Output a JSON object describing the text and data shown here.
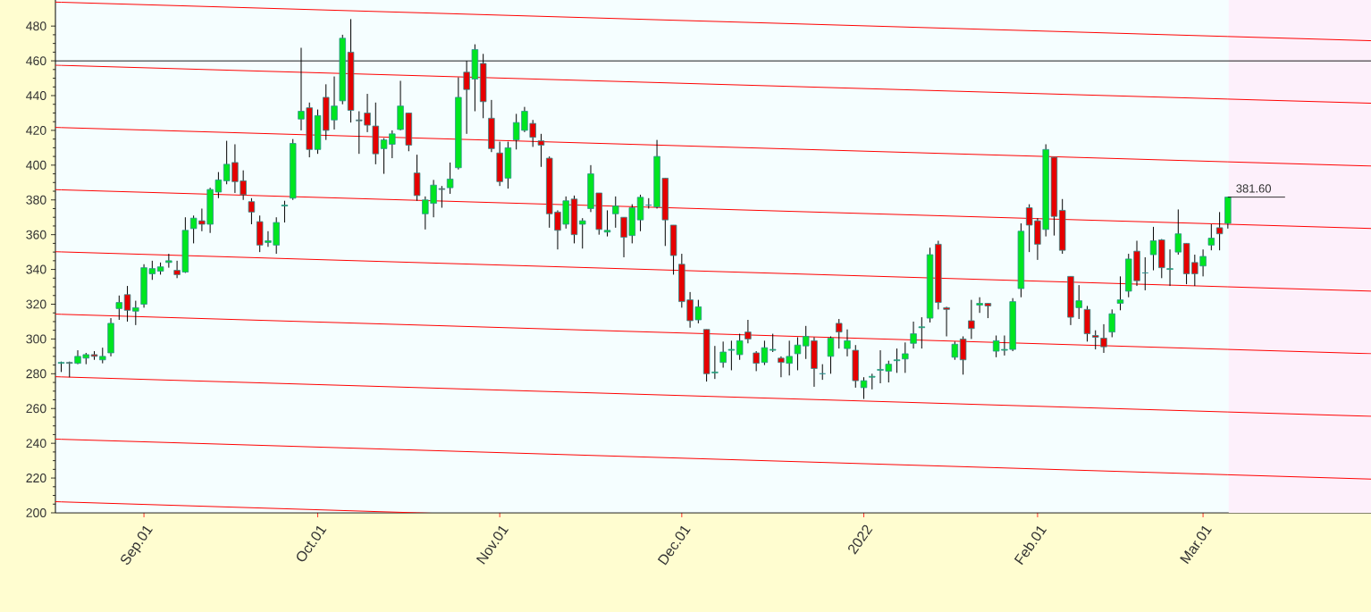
{
  "chart_data": {
    "type": "candlestick",
    "categories": [
      null,
      null,
      null,
      null,
      null,
      null,
      null,
      null,
      null,
      null,
      "Sep.01",
      null,
      null,
      null,
      null,
      null,
      null,
      null,
      null,
      null,
      null,
      null,
      null,
      null,
      null,
      null,
      null,
      null,
      null,
      null,
      null,
      "Oct.01",
      null,
      null,
      null,
      null,
      null,
      null,
      null,
      null,
      null,
      null,
      null,
      null,
      null,
      null,
      null,
      null,
      null,
      null,
      null,
      null,
      null,
      "Nov.01",
      null,
      null,
      null,
      null,
      null,
      null,
      null,
      null,
      null,
      null,
      null,
      null,
      null,
      null,
      null,
      null,
      null,
      null,
      null,
      null,
      null,
      "Dec.01",
      null,
      null,
      null,
      null,
      null,
      null,
      null,
      null,
      null,
      null,
      null,
      null,
      null,
      null,
      null,
      null,
      null,
      null,
      null,
      null,
      null,
      "2022",
      null,
      null,
      null,
      null,
      null,
      null,
      null,
      null,
      null,
      null,
      null,
      null,
      null,
      null,
      null,
      null,
      null,
      null,
      null,
      null,
      "Feb.01",
      null,
      null,
      null,
      null,
      null,
      null,
      null,
      null,
      null,
      null,
      null,
      null,
      null,
      null,
      null,
      null,
      null,
      null,
      null,
      "Mar.01",
      null,
      null,
      null
    ],
    "ohlc": [
      [
        286,
        287,
        281,
        286.5
      ],
      [
        286.5,
        287,
        278,
        286
      ],
      [
        286,
        293.5,
        285.5,
        290
      ],
      [
        289,
        292,
        285.5,
        291
      ],
      [
        291,
        293,
        288,
        290
      ],
      [
        288,
        295,
        286,
        290
      ],
      [
        292,
        312,
        290,
        309
      ],
      [
        317.5,
        325,
        311,
        321
      ],
      [
        325.5,
        330.5,
        310,
        316.5
      ],
      [
        316,
        322,
        308,
        318
      ],
      [
        320,
        343,
        318,
        341
      ],
      [
        337.5,
        345,
        334,
        340.5
      ],
      [
        339,
        344,
        337,
        341.5
      ],
      [
        344,
        349,
        341,
        345
      ],
      [
        339.5,
        345,
        335,
        337
      ],
      [
        338.5,
        370,
        338,
        362.5
      ],
      [
        363.5,
        371,
        355,
        369.5
      ],
      [
        368,
        375,
        362,
        366
      ],
      [
        366,
        387,
        361,
        386
      ],
      [
        384.5,
        396,
        381,
        391.5
      ],
      [
        391,
        414,
        389,
        400.5
      ],
      [
        401.5,
        412,
        384,
        390.5
      ],
      [
        391,
        397,
        380,
        383
      ],
      [
        379,
        381,
        366,
        373
      ],
      [
        367.5,
        371,
        350,
        354
      ],
      [
        355.5,
        362,
        353,
        356.5
      ],
      [
        354,
        370,
        349,
        367
      ],
      [
        376.5,
        379.5,
        367,
        377
      ],
      [
        381,
        415,
        380,
        412.5
      ],
      [
        426.5,
        467.5,
        420,
        431
      ],
      [
        433,
        436,
        404.5,
        409
      ],
      [
        409,
        432,
        406.5,
        428.5
      ],
      [
        439,
        446.5,
        414.5,
        420
      ],
      [
        426,
        451,
        420.5,
        434
      ],
      [
        437,
        475,
        435,
        473
      ],
      [
        465,
        484,
        424.5,
        431.5
      ],
      [
        426,
        431,
        406.5,
        425.5
      ],
      [
        430,
        441,
        419,
        423
      ],
      [
        422.5,
        436,
        400.5,
        406.5
      ],
      [
        409.5,
        415.5,
        395,
        414.5
      ],
      [
        412,
        420,
        404,
        418
      ],
      [
        420.5,
        448.5,
        420,
        434
      ],
      [
        430,
        430,
        408,
        411.5
      ],
      [
        395.5,
        406,
        379.5,
        382.5
      ],
      [
        372,
        382,
        363,
        380
      ],
      [
        378,
        391.5,
        370,
        388.5
      ],
      [
        386.5,
        388,
        375.5,
        386
      ],
      [
        387,
        401.5,
        383.5,
        392
      ],
      [
        398.5,
        450.5,
        397.5,
        439
      ],
      [
        453.5,
        460,
        418,
        443.5
      ],
      [
        449.5,
        469.5,
        431,
        466.5
      ],
      [
        458.5,
        464,
        427,
        436.5
      ],
      [
        427,
        437.5,
        407.5,
        409.5
      ],
      [
        407,
        413.5,
        388,
        390.5
      ],
      [
        392.5,
        413.5,
        386.5,
        410
      ],
      [
        414.5,
        429.5,
        409,
        424.5
      ],
      [
        420,
        433.5,
        419,
        431
      ],
      [
        424,
        426,
        410.5,
        416
      ],
      [
        414,
        418,
        399,
        411.5
      ],
      [
        404,
        405,
        364,
        372
      ],
      [
        373,
        374,
        351.5,
        362.5
      ],
      [
        366,
        382,
        363.5,
        379.5
      ],
      [
        380.5,
        382.5,
        355,
        360
      ],
      [
        366,
        369.5,
        352,
        368
      ],
      [
        375,
        400,
        373,
        395
      ],
      [
        384,
        384,
        360,
        363
      ],
      [
        361.5,
        374,
        359,
        362.5
      ],
      [
        372,
        382,
        364,
        376.5
      ],
      [
        370,
        370,
        347,
        358.5
      ],
      [
        359.5,
        377.5,
        355,
        375.5
      ],
      [
        368.5,
        383,
        362,
        381.5
      ],
      [
        377,
        381,
        375,
        377
      ],
      [
        376,
        414.5,
        375,
        405
      ],
      [
        392.5,
        392.5,
        353.5,
        368.5
      ],
      [
        365.5,
        365.5,
        337,
        348
      ],
      [
        343,
        349,
        318,
        321.5
      ],
      [
        322.5,
        327,
        306.5,
        310.5
      ],
      [
        311,
        322.5,
        309,
        318.5
      ],
      [
        305.5,
        305.5,
        275.5,
        280
      ],
      [
        280.5,
        296,
        277,
        281
      ],
      [
        286.5,
        298.5,
        283.5,
        292.5
      ],
      [
        293.5,
        299,
        282,
        294
      ],
      [
        291,
        303,
        288,
        299
      ],
      [
        304,
        311,
        297.5,
        300
      ],
      [
        292,
        293,
        281.5,
        286
      ],
      [
        286.5,
        299,
        285,
        295
      ],
      [
        293.5,
        303,
        292.5,
        294
      ],
      [
        289,
        290,
        278,
        286.5
      ],
      [
        286,
        299,
        279,
        290
      ],
      [
        291.5,
        301,
        282,
        296.5
      ],
      [
        296,
        307.5,
        288.5,
        301.5
      ],
      [
        299,
        301,
        272.5,
        283
      ],
      [
        280,
        285.5,
        276.5,
        280
      ],
      [
        290,
        301.5,
        280,
        300.5
      ],
      [
        309,
        311.5,
        294.5,
        304
      ],
      [
        294.5,
        305.5,
        290,
        299
      ],
      [
        293.5,
        296.5,
        272,
        276
      ],
      [
        272,
        278,
        265.5,
        276
      ],
      [
        278,
        280,
        271,
        278.5
      ],
      [
        282,
        293.5,
        274.5,
        282.5
      ],
      [
        281.5,
        287.5,
        275,
        285.5
      ],
      [
        287.5,
        294.5,
        280.5,
        288
      ],
      [
        288.5,
        298,
        280.5,
        291.5
      ],
      [
        297.5,
        310,
        294.5,
        303
      ],
      [
        306.5,
        312.5,
        294.5,
        307
      ],
      [
        312,
        352.5,
        309.5,
        348.5
      ],
      [
        354.5,
        356.5,
        317,
        321
      ],
      [
        318,
        318.5,
        301.5,
        317
      ],
      [
        289.5,
        298.5,
        288,
        297
      ],
      [
        300,
        301.5,
        279.5,
        288
      ],
      [
        310.5,
        322.5,
        300,
        306
      ],
      [
        319.5,
        324,
        315,
        320.5
      ],
      [
        320.5,
        320.5,
        312,
        319
      ],
      [
        293,
        302,
        289.5,
        299
      ],
      [
        293.5,
        302,
        290.5,
        294
      ],
      [
        294,
        323.5,
        293,
        321.5
      ],
      [
        329,
        366.5,
        324,
        362
      ],
      [
        375.5,
        377.5,
        350,
        365.5
      ],
      [
        368,
        369.5,
        345.5,
        354.5
      ],
      [
        363,
        412,
        359,
        409
      ],
      [
        404.5,
        404.5,
        359.5,
        370.5
      ],
      [
        374,
        380.5,
        349,
        351
      ],
      [
        336,
        336,
        308,
        312.5
      ],
      [
        318,
        331,
        311.5,
        322
      ],
      [
        317,
        319,
        298.5,
        303
      ],
      [
        302,
        305,
        294,
        301
      ],
      [
        300.5,
        308.5,
        292,
        295.5
      ],
      [
        304,
        317,
        301,
        314.5
      ],
      [
        320.5,
        336,
        316.5,
        322.5
      ],
      [
        327.5,
        349,
        324,
        346
      ],
      [
        350.5,
        356.5,
        330.5,
        333.5
      ],
      [
        338,
        347,
        328,
        338
      ],
      [
        348.5,
        364.5,
        339.5,
        356.5
      ],
      [
        357,
        357.5,
        335,
        341
      ],
      [
        340,
        351.5,
        330.5,
        340.5
      ],
      [
        350,
        374.5,
        348.5,
        360.5
      ],
      [
        355,
        355,
        331.5,
        337.5
      ],
      [
        344,
        348.5,
        330.5,
        337.5
      ],
      [
        342,
        351.5,
        336,
        347.5
      ],
      [
        354,
        366,
        351,
        358
      ],
      [
        364,
        373,
        351,
        360.5
      ],
      [
        366.5,
        381.6,
        363.5,
        381.6
      ]
    ],
    "series": [
      {
        "type": "line",
        "color": "#ff0000",
        "values": [
          493.7,
          null,
          null,
          null,
          null,
          null,
          null,
          null,
          null,
          null,
          null,
          null,
          null,
          null,
          null,
          null,
          null,
          null,
          null,
          null,
          null,
          null,
          null,
          null,
          null,
          null,
          null,
          null,
          null,
          null,
          null,
          null,
          null,
          null,
          null,
          null,
          null,
          null,
          null,
          null,
          null,
          null,
          null,
          null,
          null,
          null,
          null,
          null,
          null,
          null,
          null,
          null,
          null,
          null,
          null,
          null,
          null,
          null,
          null,
          null,
          null,
          null,
          null,
          null,
          null,
          null,
          null,
          null,
          null,
          null,
          null,
          null,
          null,
          null,
          null,
          null,
          null,
          null,
          null,
          null,
          null,
          null,
          null,
          null,
          null,
          null,
          null,
          null,
          null,
          null,
          null,
          null,
          null,
          null,
          null,
          null,
          null,
          null,
          null,
          null,
          null,
          null,
          null,
          null,
          null,
          null,
          null,
          null,
          null,
          null,
          null,
          null,
          null,
          null,
          null,
          null,
          null,
          null,
          null,
          null,
          null,
          null,
          null,
          null,
          null,
          null,
          null,
          null,
          null,
          null,
          null,
          null,
          null,
          null,
          null,
          null,
          null,
          null,
          null,
          null,
          null,
          474.0
        ]
      },
      {
        "type": "line",
        "color": "#ff0000",
        "values": [
          457.4,
          null,
          null,
          null,
          null,
          null,
          null,
          null,
          null,
          null,
          null,
          null,
          null,
          null,
          null,
          null,
          null,
          null,
          null,
          null,
          null,
          null,
          null,
          null,
          null,
          null,
          null,
          null,
          null,
          null,
          null,
          null,
          null,
          null,
          null,
          null,
          null,
          null,
          null,
          null,
          null,
          null,
          null,
          null,
          null,
          null,
          null,
          null,
          null,
          null,
          null,
          null,
          null,
          null,
          null,
          null,
          null,
          null,
          null,
          null,
          null,
          null,
          null,
          null,
          null,
          null,
          null,
          null,
          null,
          null,
          null,
          null,
          null,
          null,
          null,
          null,
          null,
          null,
          null,
          null,
          null,
          null,
          null,
          null,
          null,
          null,
          null,
          null,
          null,
          null,
          null,
          null,
          null,
          null,
          null,
          null,
          null,
          null,
          null,
          null,
          null,
          null,
          null,
          null,
          null,
          null,
          null,
          null,
          null,
          null,
          null,
          null,
          null,
          null,
          null,
          null,
          null,
          null,
          null,
          null,
          null,
          null,
          null,
          null,
          null,
          null,
          null,
          null,
          null,
          null,
          null,
          null,
          null,
          null,
          null,
          null,
          null,
          null,
          null,
          null,
          null,
          438.0
        ]
      },
      {
        "type": "line",
        "color": "#ff0000",
        "values": [
          421.6,
          null,
          null,
          null,
          null,
          null,
          null,
          null,
          null,
          null,
          null,
          null,
          null,
          null,
          null,
          null,
          null,
          null,
          null,
          null,
          null,
          null,
          null,
          null,
          null,
          null,
          null,
          null,
          null,
          null,
          null,
          null,
          null,
          null,
          null,
          null,
          null,
          null,
          null,
          null,
          null,
          null,
          null,
          null,
          null,
          null,
          null,
          null,
          null,
          null,
          null,
          null,
          null,
          null,
          null,
          null,
          null,
          null,
          null,
          null,
          null,
          null,
          null,
          null,
          null,
          null,
          null,
          null,
          null,
          null,
          null,
          null,
          null,
          null,
          null,
          null,
          null,
          null,
          null,
          null,
          null,
          null,
          null,
          null,
          null,
          null,
          null,
          null,
          null,
          null,
          null,
          null,
          null,
          null,
          null,
          null,
          null,
          null,
          null,
          null,
          null,
          null,
          null,
          null,
          null,
          null,
          null,
          null,
          null,
          null,
          null,
          null,
          null,
          null,
          null,
          null,
          null,
          null,
          null,
          null,
          null,
          null,
          null,
          null,
          null,
          null,
          null,
          null,
          null,
          null,
          null,
          null,
          null,
          null,
          null,
          null,
          null,
          null,
          null,
          null,
          null,
          401.9
        ]
      },
      {
        "type": "line",
        "color": "#ff0000",
        "values": [
          385.8,
          null,
          null,
          null,
          null,
          null,
          null,
          null,
          null,
          null,
          null,
          null,
          null,
          null,
          null,
          null,
          null,
          null,
          null,
          null,
          null,
          null,
          null,
          null,
          null,
          null,
          null,
          null,
          null,
          null,
          null,
          null,
          null,
          null,
          null,
          null,
          null,
          null,
          null,
          null,
          null,
          null,
          null,
          null,
          null,
          null,
          null,
          null,
          null,
          null,
          null,
          null,
          null,
          null,
          null,
          null,
          null,
          null,
          null,
          null,
          null,
          null,
          null,
          null,
          null,
          null,
          null,
          null,
          null,
          null,
          null,
          null,
          null,
          null,
          null,
          null,
          null,
          null,
          null,
          null,
          null,
          null,
          null,
          null,
          null,
          null,
          null,
          null,
          null,
          null,
          null,
          null,
          null,
          null,
          null,
          null,
          null,
          null,
          null,
          null,
          null,
          null,
          null,
          null,
          null,
          null,
          null,
          null,
          null,
          null,
          null,
          null,
          null,
          null,
          null,
          null,
          null,
          null,
          null,
          null,
          null,
          null,
          null,
          null,
          null,
          null,
          null,
          null,
          null,
          null,
          null,
          null,
          null,
          null,
          null,
          null,
          null,
          null,
          null,
          null,
          null,
          366.0
        ]
      },
      {
        "type": "line",
        "color": "#ff0000",
        "values": [
          350.1,
          null,
          null,
          null,
          null,
          null,
          null,
          null,
          null,
          null,
          null,
          null,
          null,
          null,
          null,
          null,
          null,
          null,
          null,
          null,
          null,
          null,
          null,
          null,
          null,
          null,
          null,
          null,
          null,
          null,
          null,
          null,
          null,
          null,
          null,
          null,
          null,
          null,
          null,
          null,
          null,
          null,
          null,
          null,
          null,
          null,
          null,
          null,
          null,
          null,
          null,
          null,
          null,
          null,
          null,
          null,
          null,
          null,
          null,
          null,
          null,
          null,
          null,
          null,
          null,
          null,
          null,
          null,
          null,
          null,
          null,
          null,
          null,
          null,
          null,
          null,
          null,
          null,
          null,
          null,
          null,
          null,
          null,
          null,
          null,
          null,
          null,
          null,
          null,
          null,
          null,
          null,
          null,
          null,
          null,
          null,
          null,
          null,
          null,
          null,
          null,
          null,
          null,
          null,
          null,
          null,
          null,
          null,
          null,
          null,
          null,
          null,
          null,
          null,
          null,
          null,
          null,
          null,
          null,
          null,
          null,
          null,
          null,
          null,
          null,
          null,
          null,
          null,
          null,
          null,
          null,
          null,
          null,
          null,
          null,
          null,
          null,
          null,
          null,
          null,
          null,
          330.0
        ]
      },
      {
        "type": "line",
        "color": "#ff0000",
        "values": [
          314.2,
          null,
          null,
          null,
          null,
          null,
          null,
          null,
          null,
          null,
          null,
          null,
          null,
          null,
          null,
          null,
          null,
          null,
          null,
          null,
          null,
          null,
          null,
          null,
          null,
          null,
          null,
          null,
          null,
          null,
          null,
          null,
          null,
          null,
          null,
          null,
          null,
          null,
          null,
          null,
          null,
          null,
          null,
          null,
          null,
          null,
          null,
          null,
          null,
          null,
          null,
          null,
          null,
          null,
          null,
          null,
          null,
          null,
          null,
          null,
          null,
          null,
          null,
          null,
          null,
          null,
          null,
          null,
          null,
          null,
          null,
          null,
          null,
          null,
          null,
          null,
          null,
          null,
          null,
          null,
          null,
          null,
          null,
          null,
          null,
          null,
          null,
          null,
          null,
          null,
          null,
          null,
          null,
          null,
          null,
          null,
          null,
          null,
          null,
          null,
          null,
          null,
          null,
          null,
          null,
          null,
          null,
          null,
          null,
          null,
          null,
          null,
          null,
          null,
          null,
          null,
          null,
          null,
          null,
          null,
          null,
          null,
          null,
          null,
          null,
          null,
          null,
          null,
          null,
          null,
          null,
          null,
          null,
          null,
          null,
          null,
          null,
          null,
          null,
          null,
          null,
          294.0
        ]
      },
      {
        "type": "line",
        "color": "#ff0000",
        "values": [
          278.2,
          null,
          null,
          null,
          null,
          null,
          null,
          null,
          null,
          null,
          null,
          null,
          null,
          null,
          null,
          null,
          null,
          null,
          null,
          null,
          null,
          null,
          null,
          null,
          null,
          null,
          null,
          null,
          null,
          null,
          null,
          null,
          null,
          null,
          null,
          null,
          null,
          null,
          null,
          null,
          null,
          null,
          null,
          null,
          null,
          null,
          null,
          null,
          null,
          null,
          null,
          null,
          null,
          null,
          null,
          null,
          null,
          null,
          null,
          null,
          null,
          null,
          null,
          null,
          null,
          null,
          null,
          null,
          null,
          null,
          null,
          null,
          null,
          null,
          null,
          null,
          null,
          null,
          null,
          null,
          null,
          null,
          null,
          null,
          null,
          null,
          null,
          null,
          null,
          null,
          null,
          null,
          null,
          null,
          null,
          null,
          null,
          null,
          null,
          null,
          null,
          null,
          null,
          null,
          null,
          null,
          null,
          null,
          null,
          null,
          null,
          null,
          null,
          null,
          null,
          null,
          null,
          null,
          null,
          null,
          null,
          null,
          null,
          null,
          null,
          null,
          null,
          null,
          null,
          null,
          null,
          null,
          null,
          null,
          null,
          null,
          null,
          null,
          null,
          null,
          null,
          258.0
        ]
      },
      {
        "type": "line",
        "color": "#ff0000",
        "values": [
          242.3,
          null,
          null,
          null,
          null,
          null,
          null,
          null,
          null,
          null,
          null,
          null,
          null,
          null,
          null,
          null,
          null,
          null,
          null,
          null,
          null,
          null,
          null,
          null,
          null,
          null,
          null,
          null,
          null,
          null,
          null,
          null,
          null,
          null,
          null,
          null,
          null,
          null,
          null,
          null,
          null,
          null,
          null,
          null,
          null,
          null,
          null,
          null,
          null,
          null,
          null,
          null,
          null,
          null,
          null,
          null,
          null,
          null,
          null,
          null,
          null,
          null,
          null,
          null,
          null,
          null,
          null,
          null,
          null,
          null,
          null,
          null,
          null,
          null,
          null,
          null,
          null,
          null,
          null,
          null,
          null,
          null,
          null,
          null,
          null,
          null,
          null,
          null,
          null,
          null,
          null,
          null,
          null,
          null,
          null,
          null,
          null,
          null,
          null,
          null,
          null,
          null,
          null,
          null,
          null,
          null,
          null,
          null,
          null,
          null,
          null,
          null,
          null,
          null,
          null,
          null,
          null,
          null,
          null,
          null,
          null,
          null,
          null,
          null,
          null,
          null,
          null,
          null,
          null,
          null,
          null,
          null,
          null,
          null,
          null,
          null,
          null,
          null,
          null,
          null,
          null,
          221.9
        ]
      },
      {
        "type": "line",
        "color": "#ff0000",
        "values": [
          206.3,
          null,
          null,
          null,
          null,
          null,
          null,
          null,
          null,
          null,
          null,
          null,
          null,
          null,
          null,
          null,
          null,
          null,
          null,
          null,
          null,
          null,
          null,
          null,
          null,
          null,
          null,
          null,
          null,
          null,
          null,
          null,
          null,
          null,
          null,
          null,
          null,
          null,
          null,
          null,
          null,
          null,
          null,
          200,
          null,
          null,
          null,
          null,
          null,
          null,
          null,
          null,
          null,
          null,
          null,
          null,
          null,
          null,
          null,
          null,
          null,
          null,
          null,
          null,
          null,
          null,
          null,
          null,
          null,
          null,
          null,
          null,
          null,
          null,
          null,
          null,
          null,
          null,
          null,
          null,
          null,
          null,
          null,
          null,
          null,
          null,
          null,
          null,
          null,
          null,
          null,
          null,
          null,
          null,
          null,
          null,
          null,
          null,
          null,
          null,
          null,
          null,
          null,
          null,
          null,
          null,
          null,
          null,
          null,
          null,
          null,
          null,
          null,
          null,
          null,
          null,
          null,
          null,
          null,
          null,
          null,
          null,
          null,
          null,
          null,
          null,
          null,
          null,
          null,
          null,
          null,
          null,
          null,
          null,
          null,
          null,
          null,
          null,
          null,
          null,
          null,
          null
        ]
      }
    ],
    "ref_lines": [
      {
        "axis": "y",
        "value": 460,
        "color": "#000000"
      }
    ],
    "annotations": [
      "381.60"
    ],
    "ylim": [
      200,
      495
    ],
    "yticks": [
      200,
      220,
      240,
      260,
      280,
      300,
      320,
      340,
      360,
      380,
      400,
      420,
      440,
      460,
      480
    ]
  }
}
